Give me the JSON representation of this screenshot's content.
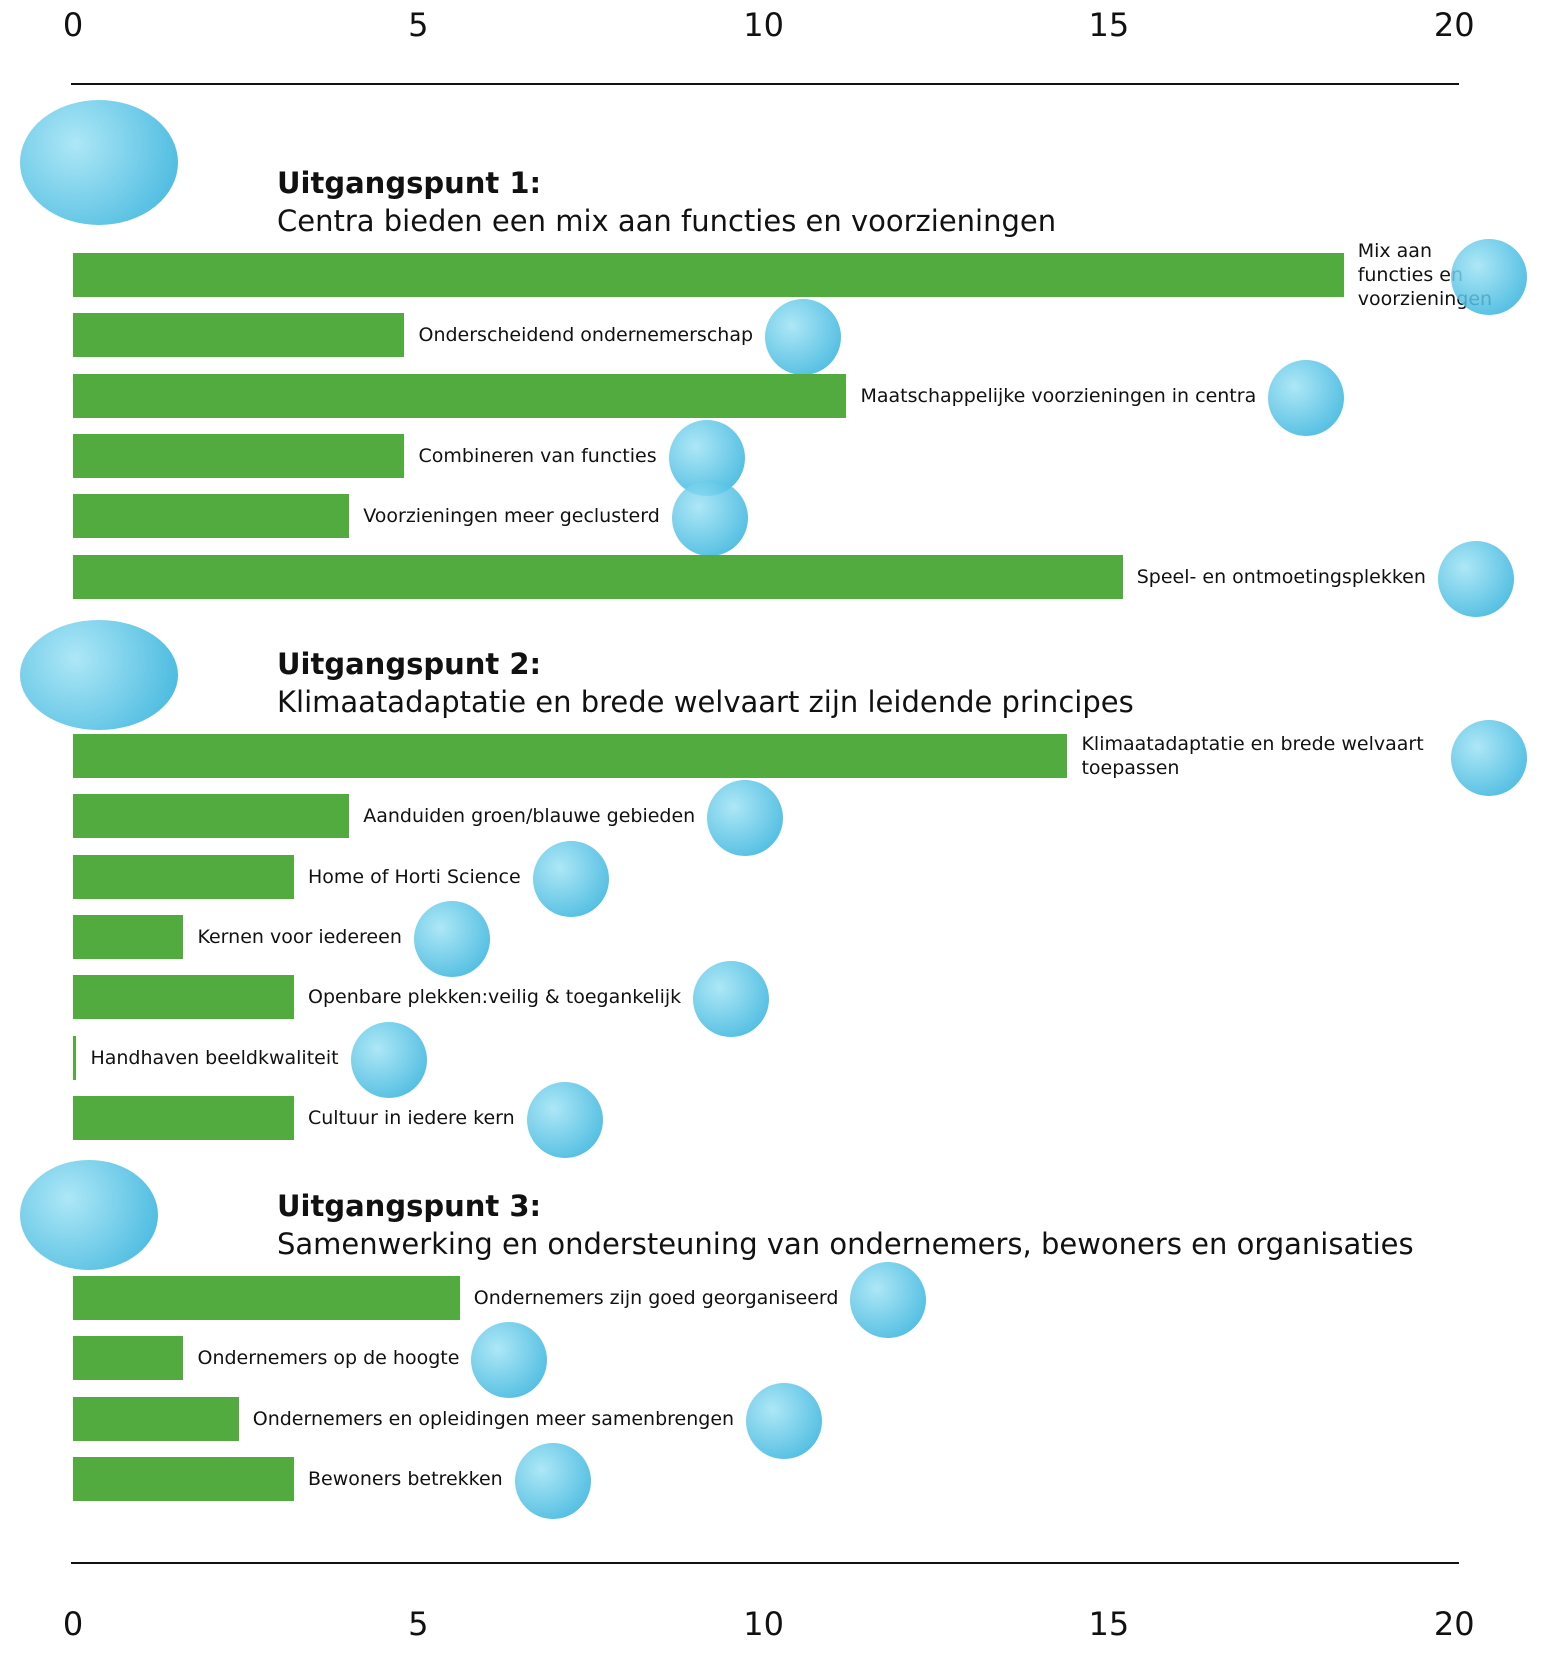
{
  "chart_data": {
    "type": "bar",
    "orientation": "horizontal",
    "xlim": [
      0,
      20
    ],
    "xticks": [
      0,
      5,
      10,
      15,
      20
    ],
    "color": "#52ab3f",
    "groups": [
      {
        "title": "Uitgangspunt 1:",
        "subtitle": "Centra bieden een mix aan functies en voorzieningen",
        "categories": [
          "Mix aan functies en voorzieningen",
          "Onderscheidend ondernemerschap",
          "Maatschappelijke voorzieningen in centra",
          "Combineren van functies",
          "Voorzieningen meer geclusterd",
          "Speel- en ontmoetingsplekken"
        ],
        "values": [
          18.4,
          4.8,
          11.2,
          4.8,
          4.0,
          15.2
        ]
      },
      {
        "title": "Uitgangspunt 2:",
        "subtitle": "Klimaatadaptatie en brede welvaart zijn leidende principes",
        "categories": [
          "Klimaatadaptatie en brede welvaart toepassen",
          "Aanduiden groen/blauwe gebieden",
          "Home of Horti Science",
          "Kernen voor iedereen",
          "Openbare plekken:veilig & toegankelijk",
          "Handhaven beeldkwaliteit",
          "Cultuur in iedere kern"
        ],
        "values": [
          14.4,
          4.0,
          3.2,
          1.6,
          3.2,
          0.05,
          3.2
        ]
      },
      {
        "title": "Uitgangspunt 3:",
        "subtitle": "Samenwerking en ondersteuning van ondernemers, bewoners en organisaties",
        "categories": [
          "Ondernemers zijn goed georganiseerd",
          "Ondernemers op de hoogte",
          "Ondernemers en opleidingen meer samenbrengen",
          "Bewoners betrekken"
        ],
        "values": [
          5.6,
          1.6,
          2.4,
          3.2
        ]
      }
    ]
  }
}
